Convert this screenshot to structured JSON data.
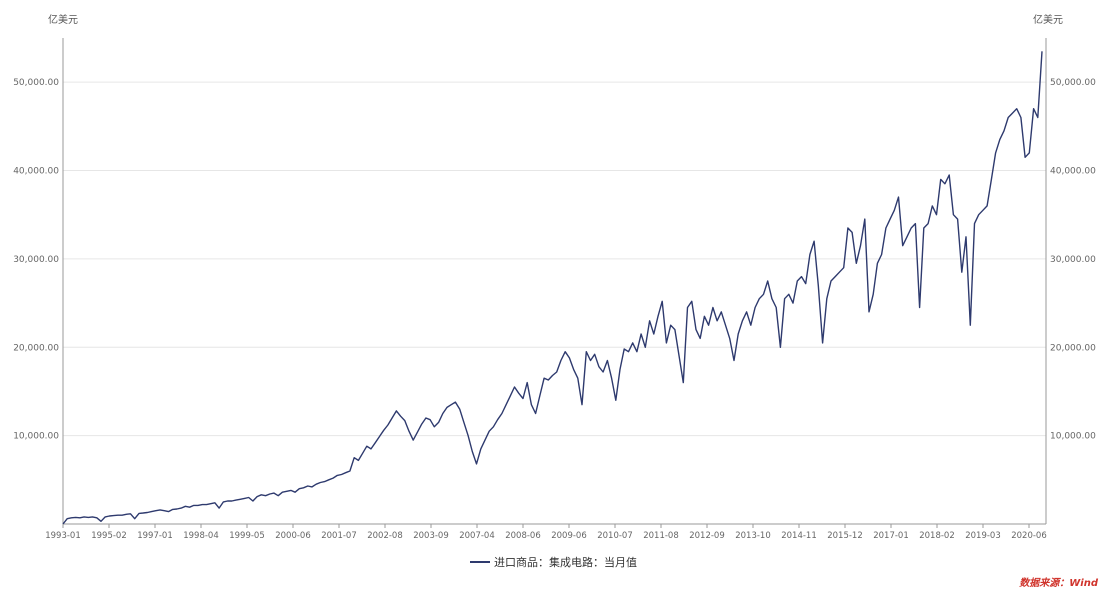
{
  "chart_data": {
    "type": "line",
    "title": "",
    "ylabel_left": "亿美元",
    "ylabel_right": "亿美元",
    "ylim": [
      0,
      55000
    ],
    "y_ticks": [
      {
        "value": 10000,
        "label": "10,000.00"
      },
      {
        "value": 20000,
        "label": "20,000.00"
      },
      {
        "value": 30000,
        "label": "30,000.00"
      },
      {
        "value": 40000,
        "label": "40,000.00"
      },
      {
        "value": 50000,
        "label": "50,000.00"
      }
    ],
    "x_ticks": [
      "1993-01",
      "1995-02",
      "1997-01",
      "1998-04",
      "1999-05",
      "2000-06",
      "2001-07",
      "2002-08",
      "2003-09",
      "2007-04",
      "2008-06",
      "2009-06",
      "2010-07",
      "2011-08",
      "2012-09",
      "2013-10",
      "2014-11",
      "2015-12",
      "2017-01",
      "2018-02",
      "2019-03",
      "2020-06"
    ],
    "legend": {
      "position": "bottom",
      "entries": [
        "进口商品：集成电路：当月值"
      ]
    },
    "series": [
      {
        "name": "进口商品：集成电路：当月值",
        "color": "#2e3a6e",
        "values": [
          0,
          600,
          700,
          750,
          700,
          800,
          750,
          800,
          700,
          300,
          800,
          900,
          950,
          1000,
          1000,
          1100,
          1150,
          600,
          1200,
          1250,
          1300,
          1400,
          1500,
          1600,
          1500,
          1400,
          1650,
          1700,
          1800,
          2000,
          1900,
          2100,
          2100,
          2200,
          2200,
          2300,
          2400,
          1800,
          2500,
          2600,
          2600,
          2700,
          2800,
          2900,
          3000,
          2600,
          3100,
          3300,
          3200,
          3400,
          3500,
          3200,
          3600,
          3700,
          3800,
          3600,
          4000,
          4100,
          4300,
          4200,
          4500,
          4700,
          4800,
          5000,
          5200,
          5500,
          5600,
          5800,
          6000,
          7500,
          7200,
          8000,
          8800,
          8500,
          9200,
          9900,
          10600,
          11200,
          12000,
          12800,
          12200,
          11700,
          10500,
          9500,
          10400,
          11300,
          12000,
          11800,
          11000,
          11500,
          12500,
          13200,
          13500,
          13800,
          13000,
          11500,
          10000,
          8200,
          6800,
          8500,
          9500,
          10500,
          11000,
          11800,
          12500,
          13500,
          14500,
          15500,
          14800,
          14200,
          16000,
          13500,
          12500,
          14500,
          16500,
          16300,
          16800,
          17200,
          18500,
          19500,
          18800,
          17500,
          16500,
          13500,
          19500,
          18500,
          19200,
          17800,
          17200,
          18500,
          16500,
          14000,
          17500,
          19800,
          19500,
          20500,
          19500,
          21500,
          20000,
          23000,
          21500,
          23500,
          25200,
          20500,
          22500,
          22000,
          19000,
          16000,
          24500,
          25200,
          22000,
          21000,
          23500,
          22500,
          24500,
          23000,
          24000,
          22500,
          21000,
          18500,
          21500,
          23000,
          24000,
          22500,
          24500,
          25500,
          26000,
          27500,
          25500,
          24500,
          20000,
          25500,
          26000,
          25000,
          27500,
          28000,
          27200,
          30500,
          32000,
          27000,
          20500,
          25500,
          27500,
          28000,
          28500,
          29000,
          33500,
          33000,
          29500,
          31500,
          34500,
          24000,
          26000,
          29500,
          30500,
          33500,
          34500,
          35500,
          37000,
          31500,
          32500,
          33500,
          34000,
          24500,
          33500,
          34000,
          36000,
          35000,
          39000,
          38500,
          39500,
          35000,
          34500,
          28500,
          32500,
          22500,
          34000,
          35000,
          35500,
          36000,
          39000,
          42000,
          43500,
          44500,
          46000,
          46500,
          47000,
          46000,
          41500,
          42000,
          47000,
          46000,
          53500
        ]
      }
    ],
    "grid": true,
    "watermark": "数据来源：Wind"
  }
}
